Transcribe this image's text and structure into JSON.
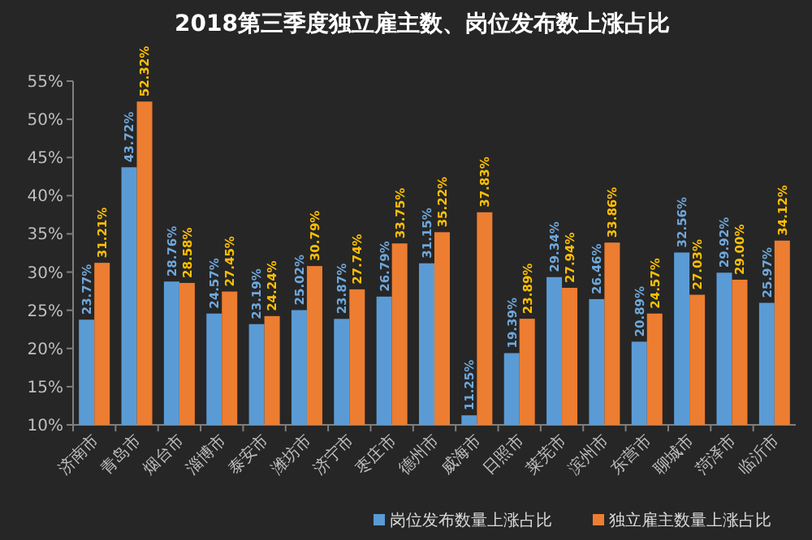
{
  "chart_data": {
    "type": "bar",
    "title": "2018第三季度独立雇主数、岗位发布数上涨占比",
    "categories": [
      "济南市",
      "青岛市",
      "烟台市",
      "淄博市",
      "泰安市",
      "潍坊市",
      "济宁市",
      "枣庄市",
      "德州市",
      "威海市",
      "日照市",
      "莱芜市",
      "滨州市",
      "东营市",
      "聊城市",
      "菏泽市",
      "临沂市"
    ],
    "series": [
      {
        "name": "岗位发布数量上涨占比",
        "color": "#5b9bd5",
        "values": [
          23.77,
          43.72,
          28.76,
          24.57,
          23.19,
          25.02,
          23.87,
          26.79,
          31.15,
          11.25,
          19.39,
          29.34,
          26.46,
          20.89,
          32.56,
          29.92,
          25.97
        ],
        "value_labels": [
          "23.77%",
          "43.72%",
          "28.76%",
          "24.57%",
          "23.19%",
          "25.02%",
          "23.87%",
          "26.79%",
          "31.15%",
          "11.25%",
          "19.39%",
          "29.34%",
          "26.46%",
          "20.89%",
          "32.56%",
          "29.92%",
          "25.97%"
        ]
      },
      {
        "name": "独立雇主数量上涨占比",
        "color": "#ed7d31",
        "values": [
          31.21,
          52.32,
          28.58,
          27.45,
          24.24,
          30.79,
          27.74,
          33.75,
          35.22,
          37.83,
          23.89,
          27.94,
          33.86,
          24.57,
          27.03,
          29.0,
          34.12
        ],
        "value_labels": [
          "31.21%",
          "52.32%",
          "28.58%",
          "27.45%",
          "24.24%",
          "30.79%",
          "27.74%",
          "33.75%",
          "35.22%",
          "37.83%",
          "23.89%",
          "27.94%",
          "33.86%",
          "24.57%",
          "27.03%",
          "29.00%",
          "34.12%"
        ]
      }
    ],
    "ylim": [
      10,
      55
    ],
    "yticks": [
      {
        "value": 10,
        "label": "10%"
      },
      {
        "value": 15,
        "label": "15%"
      },
      {
        "value": 20,
        "label": "20%"
      },
      {
        "value": 25,
        "label": "25%"
      },
      {
        "value": 30,
        "label": "30%"
      },
      {
        "value": 35,
        "label": "35%"
      },
      {
        "value": 40,
        "label": "40%"
      },
      {
        "value": 45,
        "label": "45%"
      },
      {
        "value": 50,
        "label": "50%"
      },
      {
        "value": 55,
        "label": "55%"
      }
    ],
    "grid": false,
    "legend": "bottom right"
  }
}
